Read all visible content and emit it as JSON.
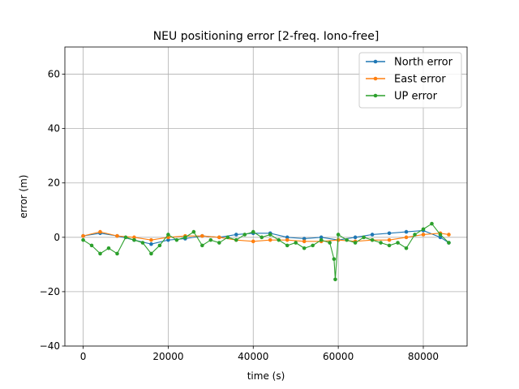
{
  "chart_data": {
    "type": "line",
    "title": "NEU positioning error [2-freq. Iono-free]",
    "xlabel": "time (s)",
    "ylabel": "error (m)",
    "xlim": [
      -4300,
      90300
    ],
    "ylim": [
      -40,
      70
    ],
    "xticks": [
      0,
      20000,
      40000,
      60000,
      80000
    ],
    "yticks": [
      -40,
      -20,
      0,
      20,
      40,
      60
    ],
    "grid": true,
    "legend_position": "top-right",
    "colors": {
      "north": "#1f77b4",
      "east": "#ff7f0e",
      "up": "#2ca02c"
    },
    "series": [
      {
        "name": "North error",
        "color": "#1f77b4",
        "x": [
          0,
          4000,
          8000,
          12000,
          16000,
          20000,
          24000,
          28000,
          32000,
          36000,
          40000,
          44000,
          48000,
          52000,
          56000,
          60000,
          64000,
          68000,
          72000,
          76000,
          80000,
          84000,
          86000
        ],
        "y": [
          0.5,
          1.5,
          0.5,
          -1,
          -2.5,
          -1,
          -0.5,
          0.5,
          0,
          1,
          1.5,
          1.5,
          0,
          -0.5,
          0,
          -1,
          0,
          1,
          1.5,
          2,
          2.5,
          0,
          -2
        ]
      },
      {
        "name": "East error",
        "color": "#ff7f0e",
        "x": [
          0,
          4000,
          8000,
          12000,
          16000,
          20000,
          24000,
          28000,
          32000,
          36000,
          40000,
          44000,
          48000,
          52000,
          56000,
          60000,
          64000,
          68000,
          72000,
          76000,
          80000,
          84000,
          86000
        ],
        "y": [
          0.5,
          2,
          0.5,
          0,
          -1,
          0,
          0.5,
          0.5,
          0,
          -1,
          -1.5,
          -1,
          -1,
          -1.5,
          -1.5,
          -1,
          -1.5,
          -1,
          -1,
          0,
          1,
          1.5,
          1
        ]
      },
      {
        "name": "UP error",
        "color": "#2ca02c",
        "x": [
          0,
          2000,
          4000,
          6000,
          8000,
          10000,
          12000,
          14000,
          16000,
          18000,
          20000,
          22000,
          24000,
          26000,
          28000,
          30000,
          32000,
          34000,
          36000,
          38000,
          40000,
          42000,
          44000,
          46000,
          48000,
          50000,
          52000,
          54000,
          56000,
          58000,
          59000,
          59300,
          60000,
          62000,
          64000,
          66000,
          68000,
          70000,
          72000,
          74000,
          76000,
          78000,
          80000,
          82000,
          84000,
          86000
        ],
        "y": [
          -1,
          -3,
          -6,
          -4,
          -6,
          0,
          -1,
          -2,
          -6,
          -3,
          1,
          -1,
          0,
          2,
          -3,
          -1,
          -2,
          0,
          -1,
          1,
          2,
          0,
          1,
          -1,
          -3,
          -2,
          -4,
          -3,
          -1,
          -2,
          -8,
          -15.5,
          1,
          -1,
          -2,
          0,
          -1,
          -2,
          -3,
          -2,
          -4,
          1,
          3,
          5,
          1,
          -2
        ]
      }
    ]
  }
}
